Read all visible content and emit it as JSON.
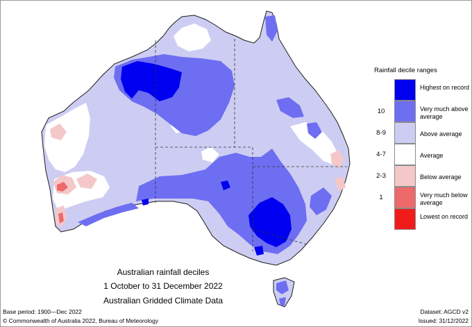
{
  "map_title": {
    "line1": "Australian rainfall deciles",
    "line2": "1 October to 31 December 2022",
    "line3": "Australian Gridded Climate Data"
  },
  "legend": {
    "title": "Rainfall decile ranges",
    "categories": [
      {
        "label": "Highest on record",
        "color": "#0000f0"
      },
      {
        "label": "Very much above average",
        "color": "#6e6ef2"
      },
      {
        "label": "Above average",
        "color": "#cdcdf3"
      },
      {
        "label": "Average",
        "color": "#ffffff"
      },
      {
        "label": "Below average",
        "color": "#f4c8c8"
      },
      {
        "label": "Very much below average",
        "color": "#ee6a6a"
      },
      {
        "label": "Lowest on record",
        "color": "#f01c1c"
      }
    ],
    "ranges": [
      "10",
      "8-9",
      "4-7",
      "2-3",
      "1"
    ]
  },
  "footer": {
    "base_period": "Base period: 1900—Dec 2022",
    "copyright": "© Commonwealth of Australia 2022, Bureau of Meteorology",
    "dataset": "Dataset: AGCD v2",
    "issued": "Issued: 31/12/2022"
  }
}
